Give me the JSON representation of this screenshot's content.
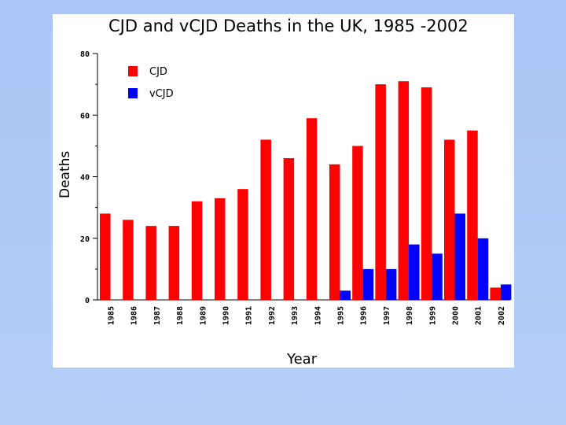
{
  "chart_data": {
    "type": "bar",
    "title": "CJD and vCJD Deaths in the UK, 1985 -2002",
    "xlabel": "Year",
    "ylabel": "Deaths",
    "ylim": [
      0,
      80
    ],
    "yticks": [
      0,
      20,
      40,
      60,
      80
    ],
    "grid": false,
    "legend_position": "top-left",
    "categories": [
      "1985",
      "1986",
      "1987",
      "1988",
      "1989",
      "1990",
      "1991",
      "1992",
      "1993",
      "1994",
      "1995",
      "1996",
      "1997",
      "1998",
      "1999",
      "2000",
      "2001",
      "2002"
    ],
    "series": [
      {
        "name": "CJD",
        "color": "#ff0000",
        "values": [
          28,
          26,
          24,
          24,
          32,
          33,
          36,
          52,
          46,
          59,
          44,
          50,
          70,
          71,
          69,
          52,
          55,
          4
        ]
      },
      {
        "name": "vCJD",
        "color": "#0000ff",
        "values": [
          0,
          0,
          0,
          0,
          0,
          0,
          0,
          0,
          0,
          0,
          3,
          10,
          10,
          18,
          15,
          28,
          20,
          5
        ]
      }
    ]
  }
}
